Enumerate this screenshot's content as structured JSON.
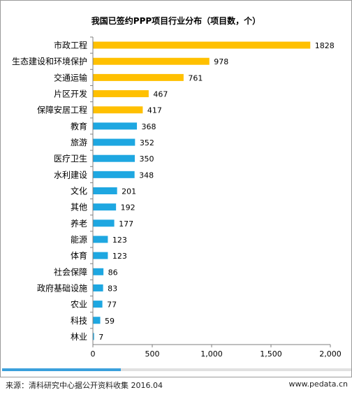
{
  "chart_data": {
    "type": "bar",
    "orientation": "horizontal",
    "title": "我国已签约PPP项目行业分布（项目数，个）",
    "xlabel": "",
    "ylabel": "",
    "xlim": [
      0,
      2000
    ],
    "x_ticks": [
      {
        "value": 0,
        "label": "0"
      },
      {
        "value": 500,
        "label": "500"
      },
      {
        "value": 1000,
        "label": "1,000"
      },
      {
        "value": 1500,
        "label": "1,500"
      },
      {
        "value": 2000,
        "label": "2,000"
      }
    ],
    "grid": false,
    "legend": "none",
    "categories": [
      "市政工程",
      "生态建设和环境保护",
      "交通运输",
      "片区开发",
      "保障安居工程",
      "教育",
      "旅游",
      "医疗卫生",
      "水利建设",
      "文化",
      "其他",
      "养老",
      "能源",
      "体育",
      "社会保障",
      "政府基础设施",
      "农业",
      "科技",
      "林业"
    ],
    "values": [
      1828,
      978,
      761,
      467,
      417,
      368,
      352,
      350,
      348,
      201,
      192,
      177,
      123,
      123,
      86,
      83,
      77,
      59,
      7
    ],
    "value_labels": [
      "1828",
      "978",
      "761",
      "467",
      "417",
      "368",
      "352",
      "350",
      "348",
      "201",
      "192",
      "177",
      "123",
      "123",
      "86",
      "83",
      "77",
      "59",
      "7"
    ],
    "highlight_count": 5,
    "colors": {
      "highlight": "#ffc000",
      "normal": "#1ea7e1",
      "axis": "#7f7f7f"
    }
  },
  "footer": {
    "source": "来源：清科研究中心据公开资料收集 2016.04",
    "site": "www.pedata.cn"
  },
  "scroll": {
    "progress": 0.34,
    "color": "#3aa0dc"
  }
}
